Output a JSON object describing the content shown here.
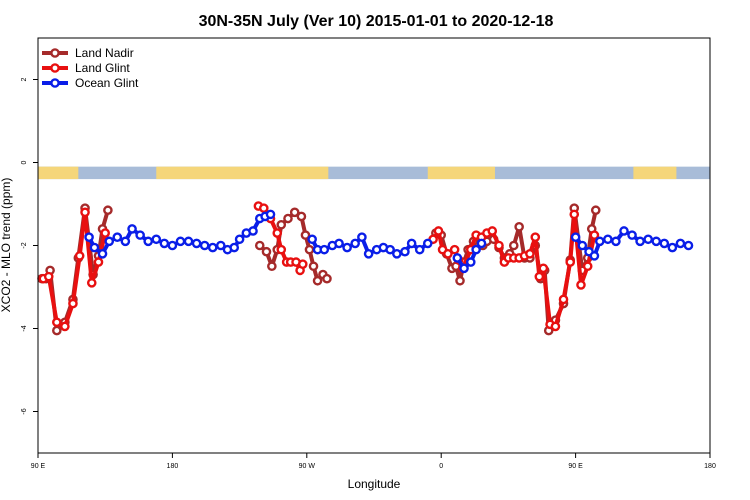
{
  "chart_data": {
    "type": "line",
    "title": "30N-35N July (Ver 10)   2015-01-01 to 2020-12-18",
    "xlabel": "Longitude",
    "ylabel": "XCO2 - MLO trend (ppm)",
    "xlim": [
      0,
      500
    ],
    "ylim": [
      -7,
      3
    ],
    "x_ticks": [
      {
        "value": 0,
        "label": "90 E"
      },
      {
        "value": 100,
        "label": "180"
      },
      {
        "value": 200,
        "label": "90 W"
      },
      {
        "value": 300,
        "label": "0"
      },
      {
        "value": 400,
        "label": "90 E"
      },
      {
        "value": 500,
        "label": "180"
      }
    ],
    "y_ticks": [
      2,
      0,
      -2,
      -4,
      -6
    ],
    "legend_position": "top-left",
    "land_band": {
      "y_range": [
        -0.1,
        -0.4
      ],
      "ocean_color": "#a8bcd8",
      "land_color": "#f5d67a",
      "land_segments": [
        [
          0,
          30
        ],
        [
          88,
          216
        ],
        [
          290,
          340
        ],
        [
          443,
          475
        ]
      ]
    },
    "series": [
      {
        "name": "Land Nadir",
        "color": "#a52a2a",
        "points": [
          [
            3,
            -2.8
          ],
          [
            6,
            -2.8
          ],
          [
            9,
            -2.6
          ],
          [
            14,
            -4.05
          ],
          [
            20,
            -3.85
          ],
          [
            26,
            -3.3
          ],
          [
            30,
            -2.3
          ],
          [
            35,
            -1.1
          ],
          [
            41,
            -2.7
          ],
          [
            45,
            -2.25
          ],
          [
            48,
            -1.6
          ],
          [
            52,
            -1.15
          ],
          null,
          [
            165,
            -2.0
          ],
          [
            170,
            -2.15
          ],
          [
            174,
            -2.5
          ],
          [
            178,
            -2.1
          ],
          [
            181,
            -1.5
          ],
          [
            186,
            -1.35
          ],
          [
            191,
            -1.2
          ],
          [
            196,
            -1.3
          ],
          [
            199,
            -1.75
          ],
          [
            202,
            -2.1
          ],
          [
            205,
            -2.5
          ],
          [
            208,
            -2.85
          ],
          [
            212,
            -2.7
          ],
          [
            215,
            -2.8
          ],
          null,
          [
            296,
            -1.7
          ],
          [
            300,
            -1.75
          ],
          [
            304,
            -2.2
          ],
          [
            308,
            -2.55
          ],
          [
            311,
            -2.5
          ],
          [
            314,
            -2.85
          ],
          [
            317,
            -2.4
          ],
          [
            320,
            -2.1
          ],
          [
            324,
            -1.9
          ],
          [
            327,
            -1.8
          ],
          [
            331,
            -2.0
          ],
          [
            334,
            -1.9
          ],
          [
            339,
            -1.85
          ],
          [
            343,
            -2.05
          ],
          [
            347,
            -2.3
          ],
          [
            351,
            -2.2
          ],
          [
            354,
            -2.0
          ],
          [
            358,
            -1.55
          ],
          [
            362,
            -2.3
          ],
          [
            366,
            -2.3
          ],
          [
            370,
            -2.0
          ],
          [
            374,
            -2.8
          ],
          [
            377,
            -2.6
          ],
          [
            380,
            -4.05
          ],
          [
            385,
            -3.8
          ],
          [
            391,
            -3.4
          ],
          [
            396,
            -2.35
          ],
          [
            399,
            -1.1
          ],
          [
            405,
            -2.6
          ],
          [
            409,
            -2.3
          ],
          [
            412,
            -1.6
          ],
          [
            415,
            -1.15
          ]
        ]
      },
      {
        "name": "Land Glint",
        "color": "#e81010",
        "points": [
          [
            4,
            -2.8
          ],
          [
            8,
            -2.75
          ],
          [
            14,
            -3.85
          ],
          [
            20,
            -3.95
          ],
          [
            26,
            -3.4
          ],
          [
            31,
            -2.25
          ],
          [
            35,
            -1.2
          ],
          [
            40,
            -2.9
          ],
          [
            45,
            -2.4
          ],
          [
            50,
            -1.7
          ],
          null,
          [
            164,
            -1.05
          ],
          [
            168,
            -1.1
          ],
          [
            173,
            -1.35
          ],
          [
            178,
            -1.7
          ],
          [
            181,
            -2.1
          ],
          [
            185,
            -2.4
          ],
          [
            188,
            -2.4
          ],
          [
            192,
            -2.4
          ],
          [
            195,
            -2.6
          ],
          [
            197,
            -2.45
          ],
          null,
          [
            294,
            -1.85
          ],
          [
            298,
            -1.65
          ],
          [
            301,
            -2.1
          ],
          [
            305,
            -2.2
          ],
          [
            310,
            -2.1
          ],
          [
            313,
            -2.35
          ],
          [
            316,
            -2.55
          ],
          [
            322,
            -2.1
          ],
          [
            326,
            -1.75
          ],
          [
            330,
            -1.8
          ],
          [
            334,
            -1.7
          ],
          [
            338,
            -1.65
          ],
          [
            343,
            -2.0
          ],
          [
            347,
            -2.4
          ],
          [
            350,
            -2.3
          ],
          [
            354,
            -2.3
          ],
          [
            358,
            -2.3
          ],
          [
            362,
            -2.25
          ],
          [
            366,
            -2.2
          ],
          [
            370,
            -1.8
          ],
          [
            373,
            -2.75
          ],
          [
            376,
            -2.55
          ],
          [
            381,
            -3.9
          ],
          [
            385,
            -3.95
          ],
          [
            391,
            -3.3
          ],
          [
            396,
            -2.4
          ],
          [
            399,
            -1.25
          ],
          [
            404,
            -2.95
          ],
          [
            409,
            -2.5
          ],
          [
            414,
            -1.75
          ]
        ]
      },
      {
        "name": "Ocean Glint",
        "color": "#0a1ee8",
        "points": [
          [
            38,
            -1.8
          ],
          [
            42,
            -2.05
          ],
          [
            48,
            -2.2
          ],
          [
            53,
            -1.9
          ],
          [
            59,
            -1.8
          ],
          [
            65,
            -1.9
          ],
          [
            70,
            -1.6
          ],
          [
            76,
            -1.75
          ],
          [
            82,
            -1.9
          ],
          [
            88,
            -1.85
          ],
          [
            94,
            -1.95
          ],
          [
            100,
            -2.0
          ],
          [
            106,
            -1.9
          ],
          [
            112,
            -1.9
          ],
          [
            118,
            -1.95
          ],
          [
            124,
            -2.0
          ],
          [
            130,
            -2.05
          ],
          [
            136,
            -2.0
          ],
          [
            141,
            -2.1
          ],
          [
            146,
            -2.05
          ],
          [
            150,
            -1.85
          ],
          [
            155,
            -1.7
          ],
          [
            160,
            -1.65
          ],
          [
            165,
            -1.35
          ],
          [
            169,
            -1.3
          ],
          [
            173,
            -1.25
          ],
          null,
          [
            204,
            -1.85
          ],
          [
            208,
            -2.1
          ],
          [
            213,
            -2.1
          ],
          [
            219,
            -2.0
          ],
          [
            224,
            -1.95
          ],
          [
            230,
            -2.05
          ],
          [
            236,
            -1.95
          ],
          [
            241,
            -1.8
          ],
          [
            246,
            -2.2
          ],
          [
            252,
            -2.1
          ],
          [
            257,
            -2.05
          ],
          [
            262,
            -2.1
          ],
          [
            267,
            -2.2
          ],
          [
            273,
            -2.15
          ],
          [
            278,
            -1.95
          ],
          [
            284,
            -2.1
          ],
          [
            290,
            -1.95
          ],
          null,
          [
            312,
            -2.3
          ],
          [
            317,
            -2.55
          ],
          [
            322,
            -2.4
          ],
          [
            326,
            -2.1
          ],
          [
            330,
            -1.95
          ],
          null,
          [
            400,
            -1.8
          ],
          [
            405,
            -2.0
          ],
          [
            410,
            -2.15
          ],
          [
            414,
            -2.25
          ],
          [
            418,
            -1.9
          ],
          [
            424,
            -1.85
          ],
          [
            430,
            -1.9
          ],
          [
            436,
            -1.65
          ],
          [
            442,
            -1.75
          ],
          [
            448,
            -1.9
          ],
          [
            454,
            -1.85
          ],
          [
            460,
            -1.9
          ],
          [
            466,
            -1.95
          ],
          [
            472,
            -2.05
          ],
          [
            478,
            -1.95
          ],
          [
            484,
            -2.0
          ]
        ]
      }
    ]
  }
}
